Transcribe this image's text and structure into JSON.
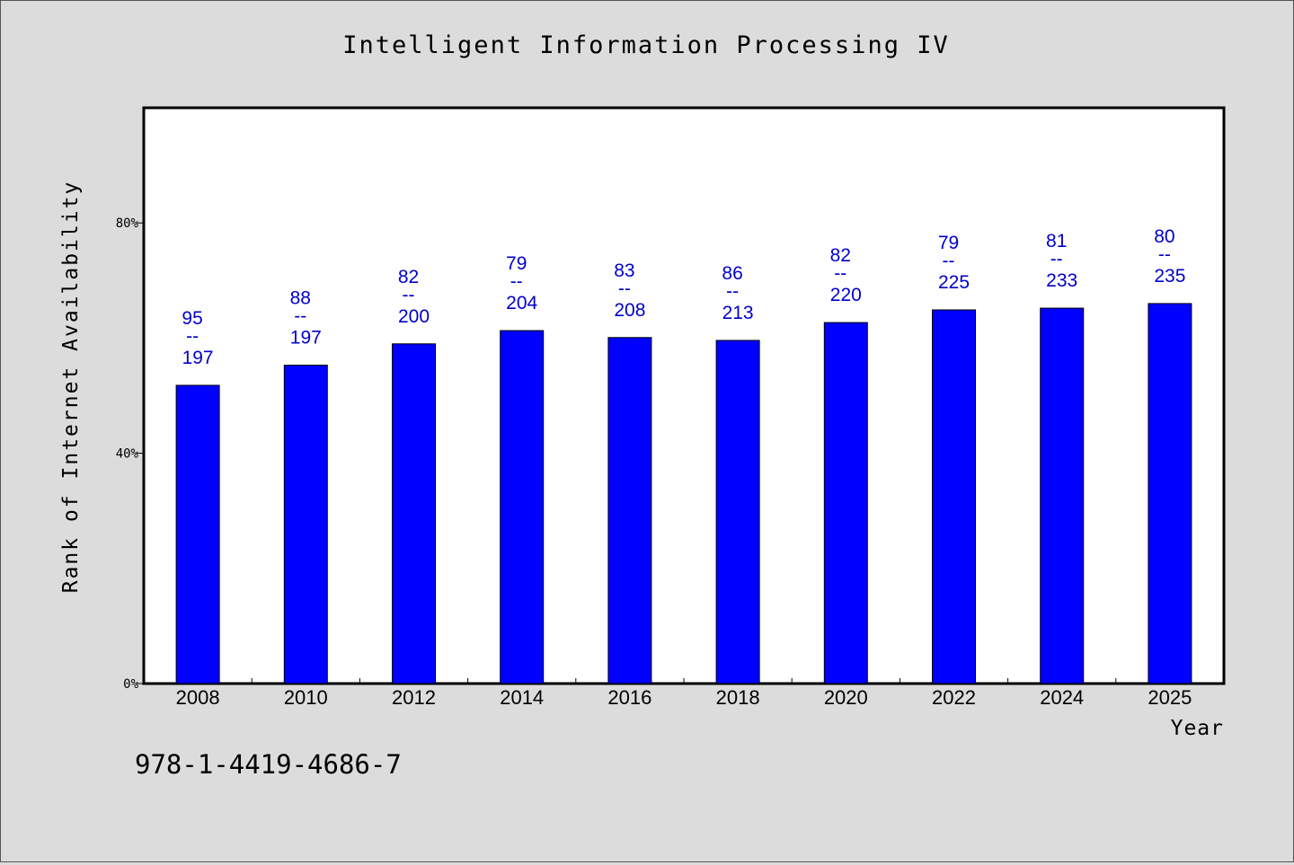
{
  "chart_data": {
    "type": "bar",
    "title": "Intelligent Information Processing IV",
    "xlabel": "Year",
    "ylabel": "Rank of Internet Availability",
    "categories": [
      "2008",
      "2010",
      "2012",
      "2014",
      "2016",
      "2018",
      "2020",
      "2022",
      "2024",
      "2025"
    ],
    "values": [
      48.2,
      44.7,
      41.0,
      38.7,
      39.9,
      40.4,
      37.3,
      35.1,
      34.8,
      34.0
    ],
    "value_unit": "%",
    "bar_labels": [
      {
        "top": "95",
        "sep": "--",
        "bottom": "197"
      },
      {
        "top": "88",
        "sep": "--",
        "bottom": "197"
      },
      {
        "top": "82",
        "sep": "--",
        "bottom": "200"
      },
      {
        "top": "79",
        "sep": "--",
        "bottom": "204"
      },
      {
        "top": "83",
        "sep": "--",
        "bottom": "208"
      },
      {
        "top": "86",
        "sep": "--",
        "bottom": "213"
      },
      {
        "top": "82",
        "sep": "--",
        "bottom": "220"
      },
      {
        "top": "79",
        "sep": "--",
        "bottom": "225"
      },
      {
        "top": "81",
        "sep": "--",
        "bottom": "233"
      },
      {
        "top": "80",
        "sep": "--",
        "bottom": "235"
      }
    ],
    "yticks": [
      "0%",
      "40%",
      "80%"
    ],
    "ytick_values": [
      0,
      40,
      80
    ],
    "ylim": [
      0,
      100
    ],
    "ylim_note": "bars are drawn inverted: bar height = 100 - value",
    "grid": false,
    "colors": {
      "bar": "#0000ff",
      "label": "#0000cc",
      "plot_bg": "#ffffff",
      "page_bg": "#dcdcdc"
    }
  },
  "footer": {
    "isbn": "978-1-4419-4686-7"
  }
}
